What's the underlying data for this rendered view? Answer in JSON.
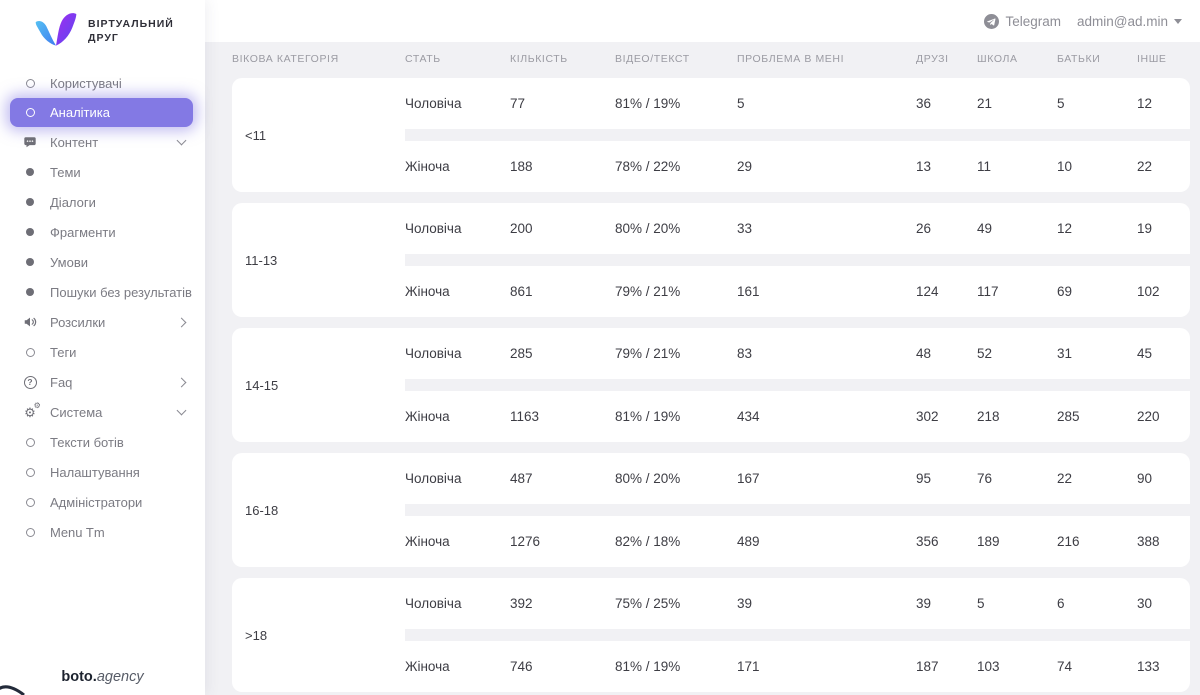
{
  "logo": {
    "title_line1": "ВІРТУАЛЬНИЙ",
    "title_line2": "ДРУГ"
  },
  "topbar": {
    "telegram_label": "Telegram",
    "user_email": "admin@ad.min"
  },
  "sidebar": {
    "items": [
      {
        "name": "users",
        "label": "Користувачі",
        "icon": "circle-outline",
        "selected": false,
        "chevron": null
      },
      {
        "name": "analytics",
        "label": "Аналітика",
        "icon": "circle-outline",
        "selected": true,
        "chevron": null
      },
      {
        "name": "content",
        "label": "Контент",
        "icon": "chat",
        "selected": false,
        "chevron": "down"
      },
      {
        "name": "topics",
        "label": "Теми",
        "icon": "circle-filled",
        "selected": false,
        "chevron": null
      },
      {
        "name": "dialogs",
        "label": "Діалоги",
        "icon": "circle-filled",
        "selected": false,
        "chevron": null
      },
      {
        "name": "fragments",
        "label": "Фрагменти",
        "icon": "circle-filled",
        "selected": false,
        "chevron": null
      },
      {
        "name": "conditions",
        "label": "Умови",
        "icon": "circle-filled",
        "selected": false,
        "chevron": null
      },
      {
        "name": "no-result-searches",
        "label": "Пошуки без результатів",
        "icon": "circle-filled",
        "selected": false,
        "chevron": null
      },
      {
        "name": "mailings",
        "label": "Розсилки",
        "icon": "megaphone",
        "selected": false,
        "chevron": "right"
      },
      {
        "name": "tags",
        "label": "Теги",
        "icon": "circle-outline",
        "selected": false,
        "chevron": null
      },
      {
        "name": "faq",
        "label": "Faq",
        "icon": "question",
        "selected": false,
        "chevron": "right"
      },
      {
        "name": "system",
        "label": "Система",
        "icon": "gears",
        "selected": false,
        "chevron": "down"
      },
      {
        "name": "bot-texts",
        "label": "Тексти ботів",
        "icon": "circle-outline",
        "selected": false,
        "chevron": null
      },
      {
        "name": "settings",
        "label": "Налаштування",
        "icon": "circle-outline",
        "selected": false,
        "chevron": null
      },
      {
        "name": "administrators",
        "label": "Адміністратори",
        "icon": "circle-outline",
        "selected": false,
        "chevron": null
      },
      {
        "name": "menu-tm",
        "label": "Menu Tm",
        "icon": "circle-outline",
        "selected": false,
        "chevron": null
      }
    ],
    "footer_brand_bold": "boto.",
    "footer_brand_light": "agency"
  },
  "table": {
    "columns": [
      "ВІКОВА КАТЕГОРІЯ",
      "СТАТЬ",
      "КІЛЬКІСТЬ",
      "ВІДЕО/ТЕКСТ",
      "ПРОБЛЕМА В МЕНІ",
      "ДРУЗІ",
      "ШКОЛА",
      "БАТЬКИ",
      "ІНШЕ"
    ],
    "column_keys": [
      "gender",
      "count",
      "video-text",
      "problem-in-me",
      "friends",
      "school",
      "parents",
      "other"
    ],
    "groups": [
      {
        "age": "<11",
        "rows": [
          [
            "Чоловіча",
            "77",
            "81% / 19%",
            "5",
            "36",
            "21",
            "5",
            "12"
          ],
          [
            "Жіноча",
            "188",
            "78% / 22%",
            "29",
            "13",
            "11",
            "10",
            "22"
          ]
        ]
      },
      {
        "age": "11-13",
        "rows": [
          [
            "Чоловіча",
            "200",
            "80% / 20%",
            "33",
            "26",
            "49",
            "12",
            "19"
          ],
          [
            "Жіноча",
            "861",
            "79% / 21%",
            "161",
            "124",
            "117",
            "69",
            "102"
          ]
        ]
      },
      {
        "age": "14-15",
        "rows": [
          [
            "Чоловіча",
            "285",
            "79% / 21%",
            "83",
            "48",
            "52",
            "31",
            "45"
          ],
          [
            "Жіноча",
            "1163",
            "81% / 19%",
            "434",
            "302",
            "218",
            "285",
            "220"
          ]
        ]
      },
      {
        "age": "16-18",
        "rows": [
          [
            "Чоловіча",
            "487",
            "80% / 20%",
            "167",
            "95",
            "76",
            "22",
            "90"
          ],
          [
            "Жіноча",
            "1276",
            "82% / 18%",
            "489",
            "356",
            "189",
            "216",
            "388"
          ]
        ]
      },
      {
        "age": ">18",
        "rows": [
          [
            "Чоловіча",
            "392",
            "75% / 25%",
            "39",
            "39",
            "5",
            "6",
            "30"
          ],
          [
            "Жіноча",
            "746",
            "81% / 19%",
            "171",
            "187",
            "103",
            "74",
            "133"
          ]
        ]
      }
    ]
  },
  "colors": {
    "accent": "#8379e4",
    "page_bg": "#f1f1f4",
    "card_bg": "#ffffff",
    "logo_blue": "#4aa9f2",
    "logo_purple": "#8a3cf0",
    "sidebar_text": "#7b7b83",
    "header_text": "#9b9ba3",
    "cell_text": "#3d3d44"
  }
}
